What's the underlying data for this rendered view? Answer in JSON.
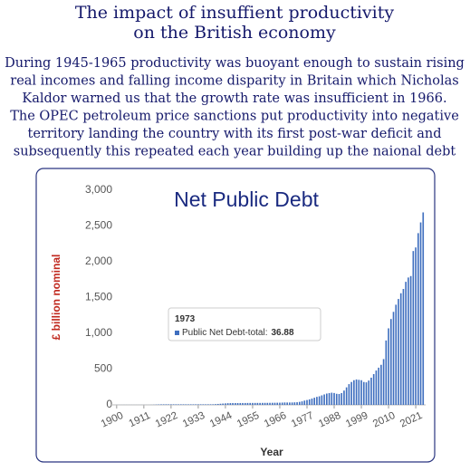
{
  "header": {
    "title_lines": [
      "The impact of insuffient productivity",
      "on the British economy"
    ],
    "paragraph_lines": [
      "During 1945-1965 productivity was buoyant enough to sustain rising",
      "real incomes and falling income disparity in Britain which Nicholas",
      "Kaldor warned us that the growth rate was insufficient in 1966.",
      "The OPEC petroleum price sanctions put productivity into negative",
      "territory landing the country with its first post-war deficit and",
      "subsequently this repeated each year building up the naional debt"
    ]
  },
  "chart_data": {
    "type": "bar",
    "title": "Net Public Debt",
    "x_label": "Year",
    "y_label": "£ billion nominal",
    "color": "#3f6fbf",
    "x": [
      1900,
      1901,
      1902,
      1903,
      1904,
      1905,
      1906,
      1907,
      1908,
      1909,
      1910,
      1911,
      1912,
      1913,
      1914,
      1915,
      1916,
      1917,
      1918,
      1919,
      1920,
      1921,
      1922,
      1923,
      1924,
      1925,
      1926,
      1927,
      1928,
      1929,
      1930,
      1931,
      1932,
      1933,
      1934,
      1935,
      1936,
      1937,
      1938,
      1939,
      1940,
      1941,
      1942,
      1943,
      1944,
      1945,
      1946,
      1947,
      1948,
      1949,
      1950,
      1951,
      1952,
      1953,
      1954,
      1955,
      1956,
      1957,
      1958,
      1959,
      1960,
      1961,
      1962,
      1963,
      1964,
      1965,
      1966,
      1967,
      1968,
      1969,
      1970,
      1971,
      1972,
      1973,
      1974,
      1975,
      1976,
      1977,
      1978,
      1979,
      1980,
      1981,
      1982,
      1983,
      1984,
      1985,
      1986,
      1987,
      1988,
      1989,
      1990,
      1991,
      1992,
      1993,
      1994,
      1995,
      1996,
      1997,
      1998,
      1999,
      2000,
      2001,
      2002,
      2003,
      2004,
      2005,
      2006,
      2007,
      2008,
      2009,
      2010,
      2011,
      2012,
      2013,
      2014,
      2015,
      2016,
      2017,
      2018,
      2019,
      2020,
      2021,
      2022,
      2023,
      2024
    ],
    "values": [
      0.6,
      0.7,
      0.7,
      0.8,
      0.8,
      0.8,
      0.7,
      0.7,
      0.7,
      0.7,
      0.7,
      0.7,
      0.7,
      0.7,
      1.1,
      2.2,
      4.1,
      5.9,
      7.4,
      7.5,
      7.8,
      7.6,
      7.7,
      7.7,
      7.6,
      7.6,
      7.6,
      7.6,
      7.5,
      7.5,
      7.5,
      7.4,
      7.7,
      7.8,
      7.8,
      7.8,
      7.8,
      7.9,
      8.0,
      8.3,
      10.6,
      13.1,
      15.8,
      18.6,
      21.4,
      23.6,
      24.7,
      25.6,
      25.5,
      25.4,
      25.8,
      25.9,
      26.1,
      26.6,
      26.9,
      27.0,
      27.1,
      27.4,
      27.2,
      27.7,
      28.0,
      28.3,
      28.6,
      29.0,
      29.5,
      30.2,
      30.8,
      32.0,
      33.6,
      33.2,
      33.3,
      33.6,
      35.3,
      36.88,
      42,
      49,
      60,
      68,
      77,
      88,
      100,
      112,
      120,
      133,
      146,
      158,
      165,
      170,
      166,
      155,
      152,
      165,
      200,
      245,
      290,
      320,
      345,
      355,
      350,
      345,
      320,
      315,
      340,
      380,
      430,
      480,
      520,
      560,
      640,
      900,
      1070,
      1200,
      1300,
      1400,
      1480,
      1560,
      1620,
      1720,
      1780,
      1800,
      2150,
      2200,
      2400,
      2550,
      2690
    ],
    "xlim": [
      1897.5,
      2025
    ],
    "xticks": [
      1900,
      1911,
      1922,
      1933,
      1944,
      1955,
      1966,
      1977,
      1988,
      1999,
      2010,
      2021
    ],
    "ylim": [
      0,
      3000
    ],
    "yticks": [
      0,
      {
        "value": 500,
        "label": "500"
      },
      {
        "value": 1000,
        "label": "1,000"
      },
      {
        "value": 1500,
        "label": "1,500"
      },
      {
        "value": 2000,
        "label": "2,000"
      },
      {
        "value": 2500,
        "label": "2,500"
      },
      {
        "value": 3000,
        "label": "3,000"
      }
    ],
    "grid": false,
    "tooltip": {
      "title": "1973",
      "label": "Public Net Debt-total:",
      "value": 36.88
    }
  }
}
